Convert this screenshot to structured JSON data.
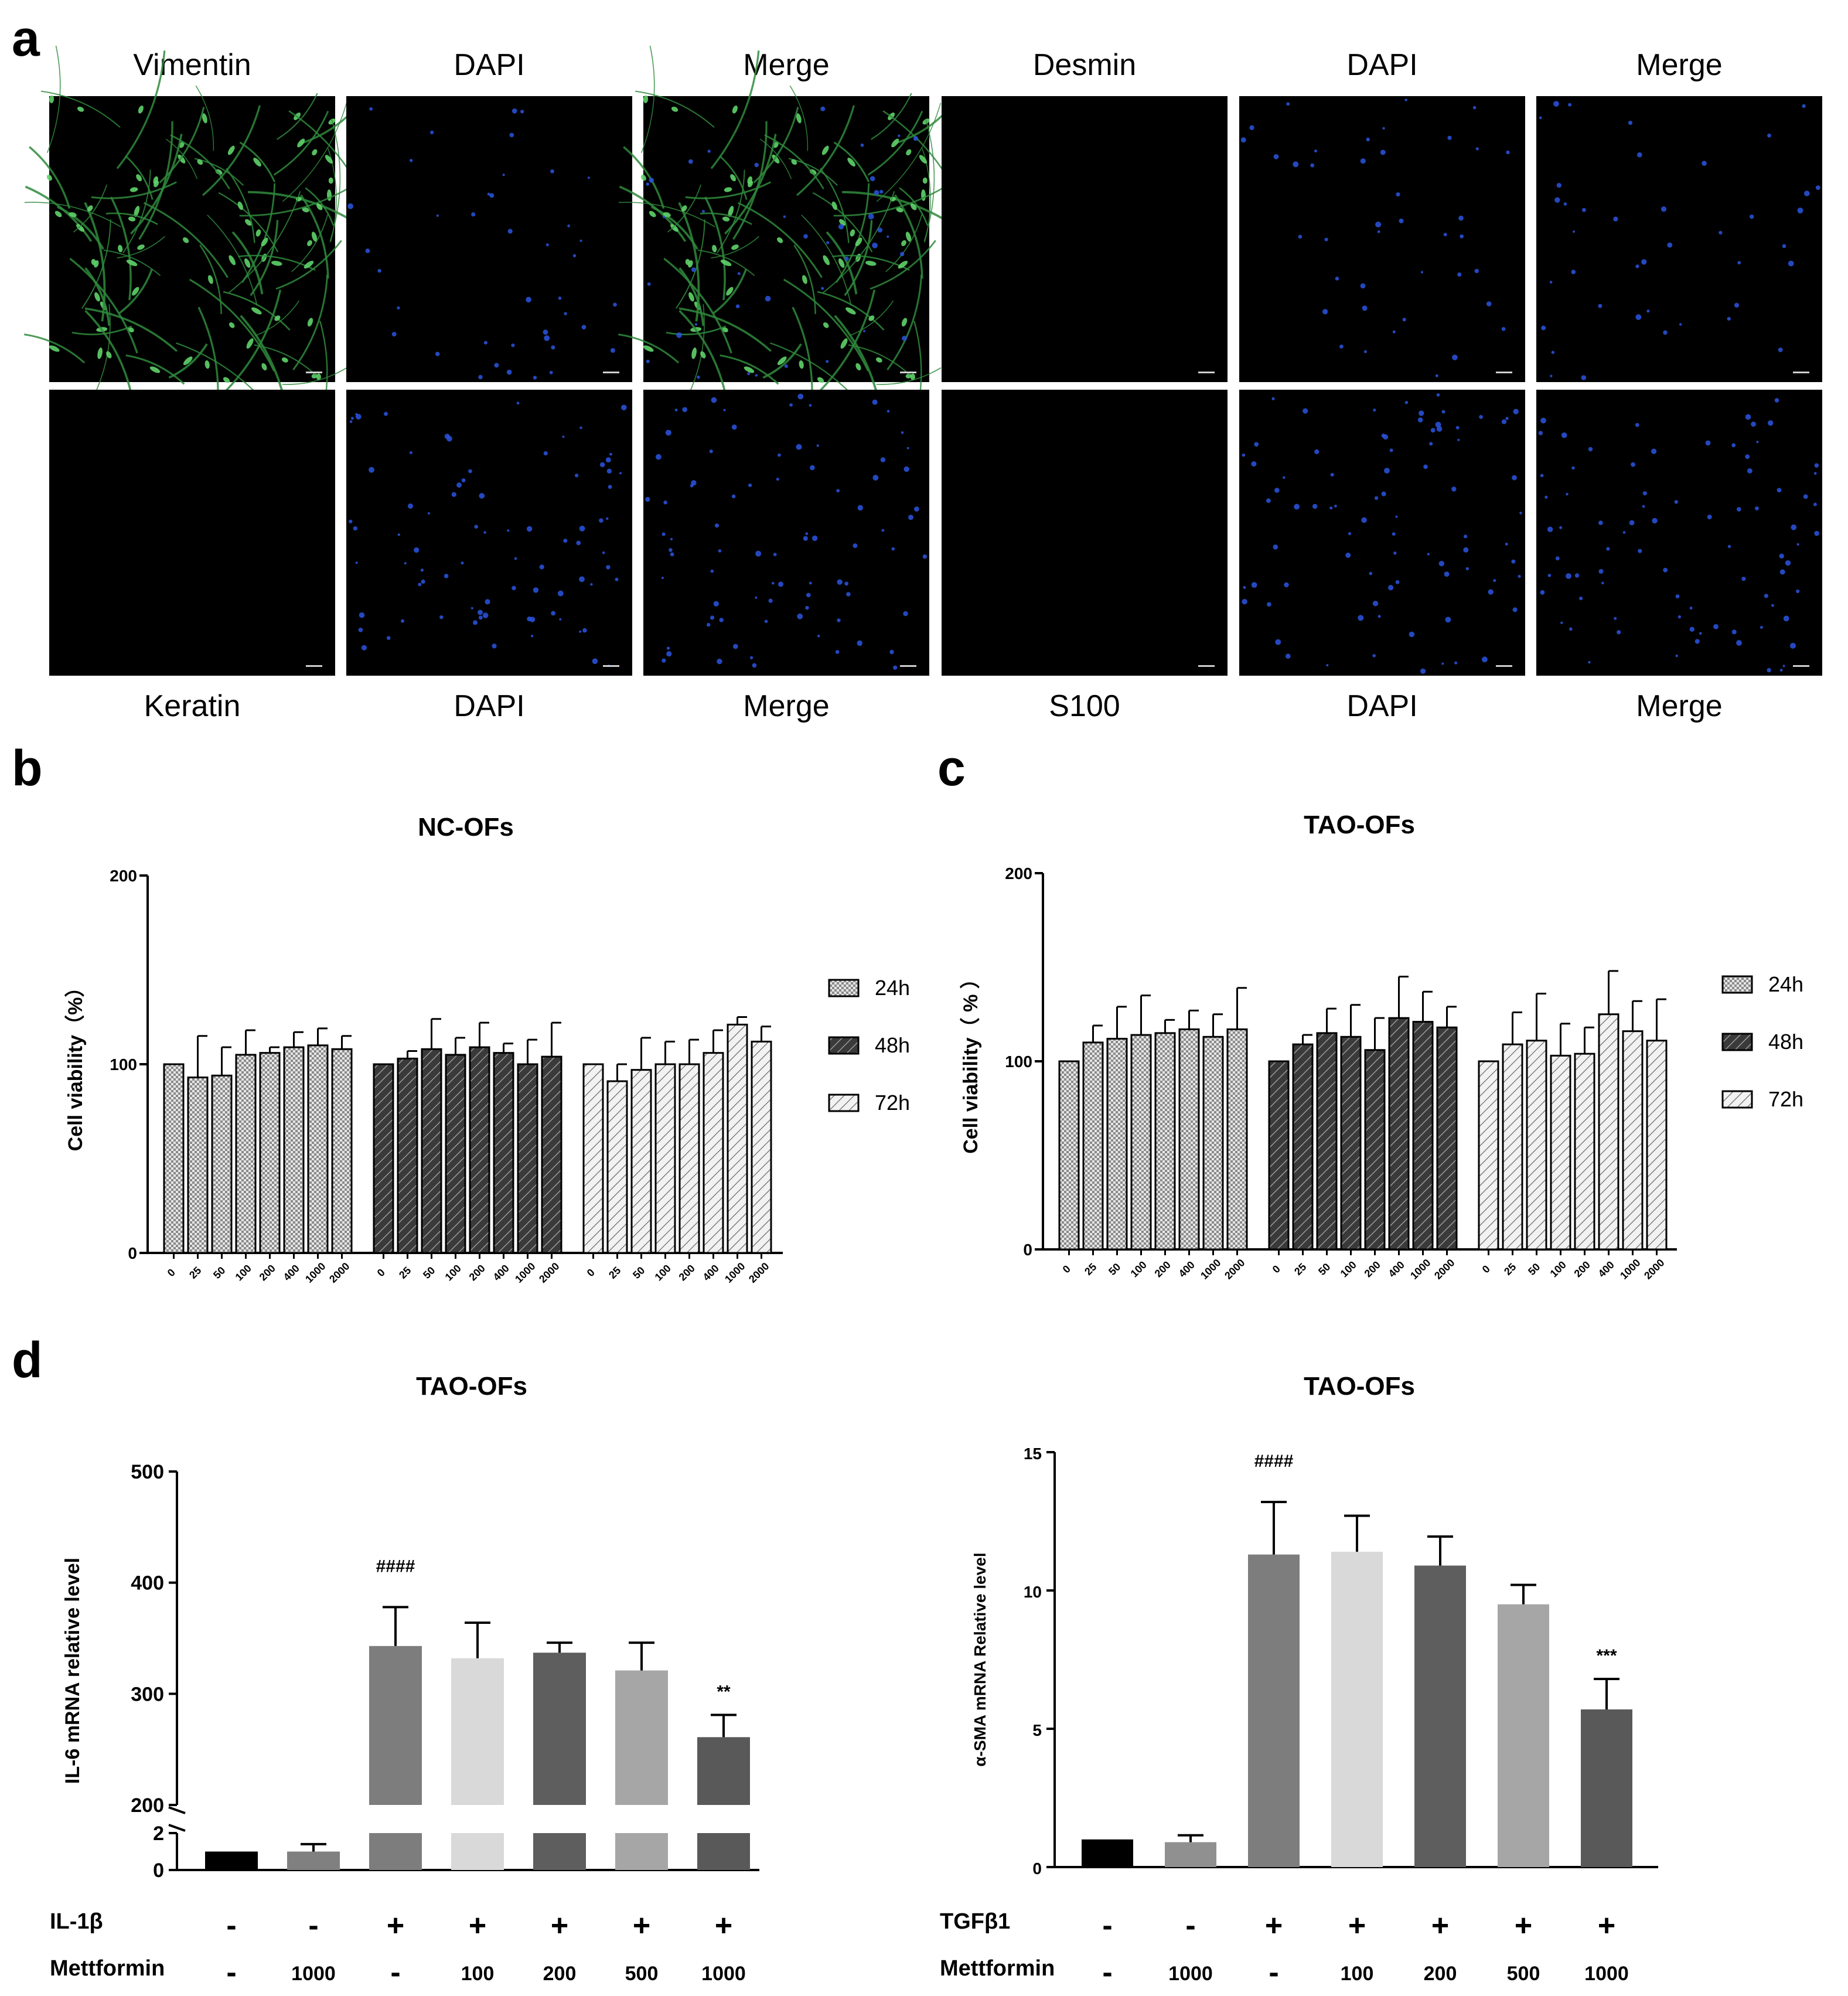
{
  "panels": {
    "a": "a",
    "b": "b",
    "c": "c",
    "d": "d"
  },
  "images": {
    "top_labels": [
      "Vimentin",
      "DAPI",
      "Merge",
      "Desmin",
      "DAPI",
      "Merge"
    ],
    "bottom_labels": [
      "Keratin",
      "DAPI",
      "Merge",
      "S100",
      "DAPI",
      "Merge"
    ]
  },
  "colors": {
    "bar_24h": "#e8e8e8",
    "bar_48h": "#3a3a3a",
    "bar_72h": "#f0f0f0",
    "il6_bars": [
      "#000000",
      "#808080",
      "#7d7d7d",
      "#d9d9d9",
      "#5e5e5e",
      "#a6a6a6",
      "#595959"
    ],
    "sma_bars": [
      "#000000",
      "#909090",
      "#7d7d7d",
      "#d9d9d9",
      "#5e5e5e",
      "#a6a6a6",
      "#595959"
    ]
  },
  "chart_data": [
    {
      "id": "b",
      "type": "bar",
      "title": "NC-OFs",
      "ylabel": "Cell viability（%）",
      "ylim": [
        0,
        200
      ],
      "yticks": [
        0,
        100,
        200
      ],
      "categories": [
        "0",
        "25",
        "50",
        "100",
        "200",
        "400",
        "1000",
        "2000"
      ],
      "legend": [
        "24h",
        "48h",
        "72h"
      ],
      "legend_position": "right",
      "series": [
        {
          "name": "24h",
          "values": [
            100,
            93,
            94,
            105,
            106,
            109,
            110,
            108
          ],
          "errors": [
            0,
            22,
            15,
            13,
            3,
            8,
            9,
            7
          ]
        },
        {
          "name": "48h",
          "values": [
            100,
            103,
            108,
            105,
            109,
            106,
            100,
            104
          ],
          "errors": [
            0,
            4,
            16,
            9,
            13,
            5,
            13,
            18
          ]
        },
        {
          "name": "72h",
          "values": [
            100,
            91,
            97,
            100,
            100,
            106,
            121,
            112
          ],
          "errors": [
            0,
            9,
            17,
            12,
            13,
            12,
            4,
            8
          ]
        }
      ]
    },
    {
      "id": "c",
      "type": "bar",
      "title": "TAO-OFs",
      "ylabel": "Cell viability（ % ）",
      "ylim": [
        0,
        200
      ],
      "yticks": [
        0,
        100,
        200
      ],
      "categories": [
        "0",
        "25",
        "50",
        "100",
        "200",
        "400",
        "1000",
        "2000"
      ],
      "legend": [
        "24h",
        "48h",
        "72h"
      ],
      "legend_position": "right",
      "series": [
        {
          "name": "24h",
          "values": [
            100,
            110,
            112,
            114,
            115,
            117,
            113,
            117
          ],
          "errors": [
            0,
            9,
            17,
            21,
            7,
            10,
            12,
            22
          ]
        },
        {
          "name": "48h",
          "values": [
            100,
            109,
            115,
            113,
            106,
            123,
            121,
            118
          ],
          "errors": [
            0,
            5,
            13,
            17,
            17,
            22,
            16,
            11
          ]
        },
        {
          "name": "72h",
          "values": [
            100,
            109,
            111,
            103,
            104,
            125,
            116,
            111
          ],
          "errors": [
            0,
            17,
            25,
            17,
            14,
            23,
            16,
            22
          ]
        }
      ]
    },
    {
      "id": "d-left",
      "type": "bar",
      "title": "TAO-OFs",
      "ylabel": "IL-6 mRNA relative level",
      "ylim": [
        0,
        500
      ],
      "axis_break": [
        2,
        200
      ],
      "yticks": [
        0,
        2,
        200,
        300,
        400,
        500
      ],
      "values": [
        1,
        1,
        343,
        332,
        337,
        321,
        261
      ],
      "errors": [
        0,
        0.4,
        35,
        32,
        9,
        25,
        20
      ],
      "annotations": [
        {
          "bar": 2,
          "text": "####"
        },
        {
          "bar": 6,
          "text": "**"
        }
      ],
      "conditions": [
        {
          "label": "IL-1β",
          "values": [
            "-",
            "-",
            "+",
            "+",
            "+",
            "+",
            "+"
          ]
        },
        {
          "label": "Mettformin",
          "values": [
            "-",
            "1000",
            "-",
            "100",
            "200",
            "500",
            "1000"
          ]
        }
      ]
    },
    {
      "id": "d-right",
      "type": "bar",
      "title": "TAO-OFs",
      "ylabel": "α-SMA mRNA Relative level",
      "ylim": [
        0,
        15
      ],
      "yticks": [
        0,
        5,
        10,
        15
      ],
      "values": [
        1,
        0.9,
        11.3,
        11.4,
        10.9,
        9.5,
        5.7
      ],
      "errors": [
        0,
        0.25,
        1.9,
        1.3,
        1.05,
        0.7,
        1.1
      ],
      "annotations": [
        {
          "bar": 2,
          "text": "####"
        },
        {
          "bar": 6,
          "text": "***"
        }
      ],
      "conditions": [
        {
          "label": "TGFβ1",
          "values": [
            "-",
            "-",
            "+",
            "+",
            "+",
            "+",
            "+"
          ]
        },
        {
          "label": "Mettformin",
          "values": [
            "-",
            "1000",
            "-",
            "100",
            "200",
            "500",
            "1000"
          ]
        }
      ]
    }
  ]
}
